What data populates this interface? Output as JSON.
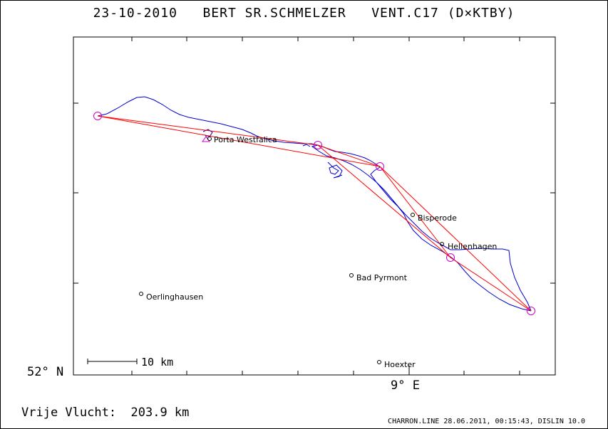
{
  "title": {
    "date": "23-10-2010",
    "pilot": "BERT SR.SCHMELZER",
    "vent": "VENT.C17 (D×KTBY)"
  },
  "axes": {
    "lat_label": "52° N",
    "lon_label": "9° E"
  },
  "scale": {
    "label": "10 km"
  },
  "places": [
    {
      "name": "Porta Westfalica"
    },
    {
      "name": "Bisperode"
    },
    {
      "name": "Hellenhagen"
    },
    {
      "name": "Bad Pyrmont"
    },
    {
      "name": "Oerlinghausen"
    },
    {
      "name": "Hoexter"
    }
  ],
  "footer": {
    "distance": "Vrije Vlucht:  203.9 km",
    "credit": "CHARRON.LINE 28.06.2011, 00:15:43, DISLIN 10.0"
  },
  "colors": {
    "track": "#0000cc",
    "task_lines": "#ff0000",
    "turnpoints": "#cc00cc",
    "frame": "#000000"
  }
}
